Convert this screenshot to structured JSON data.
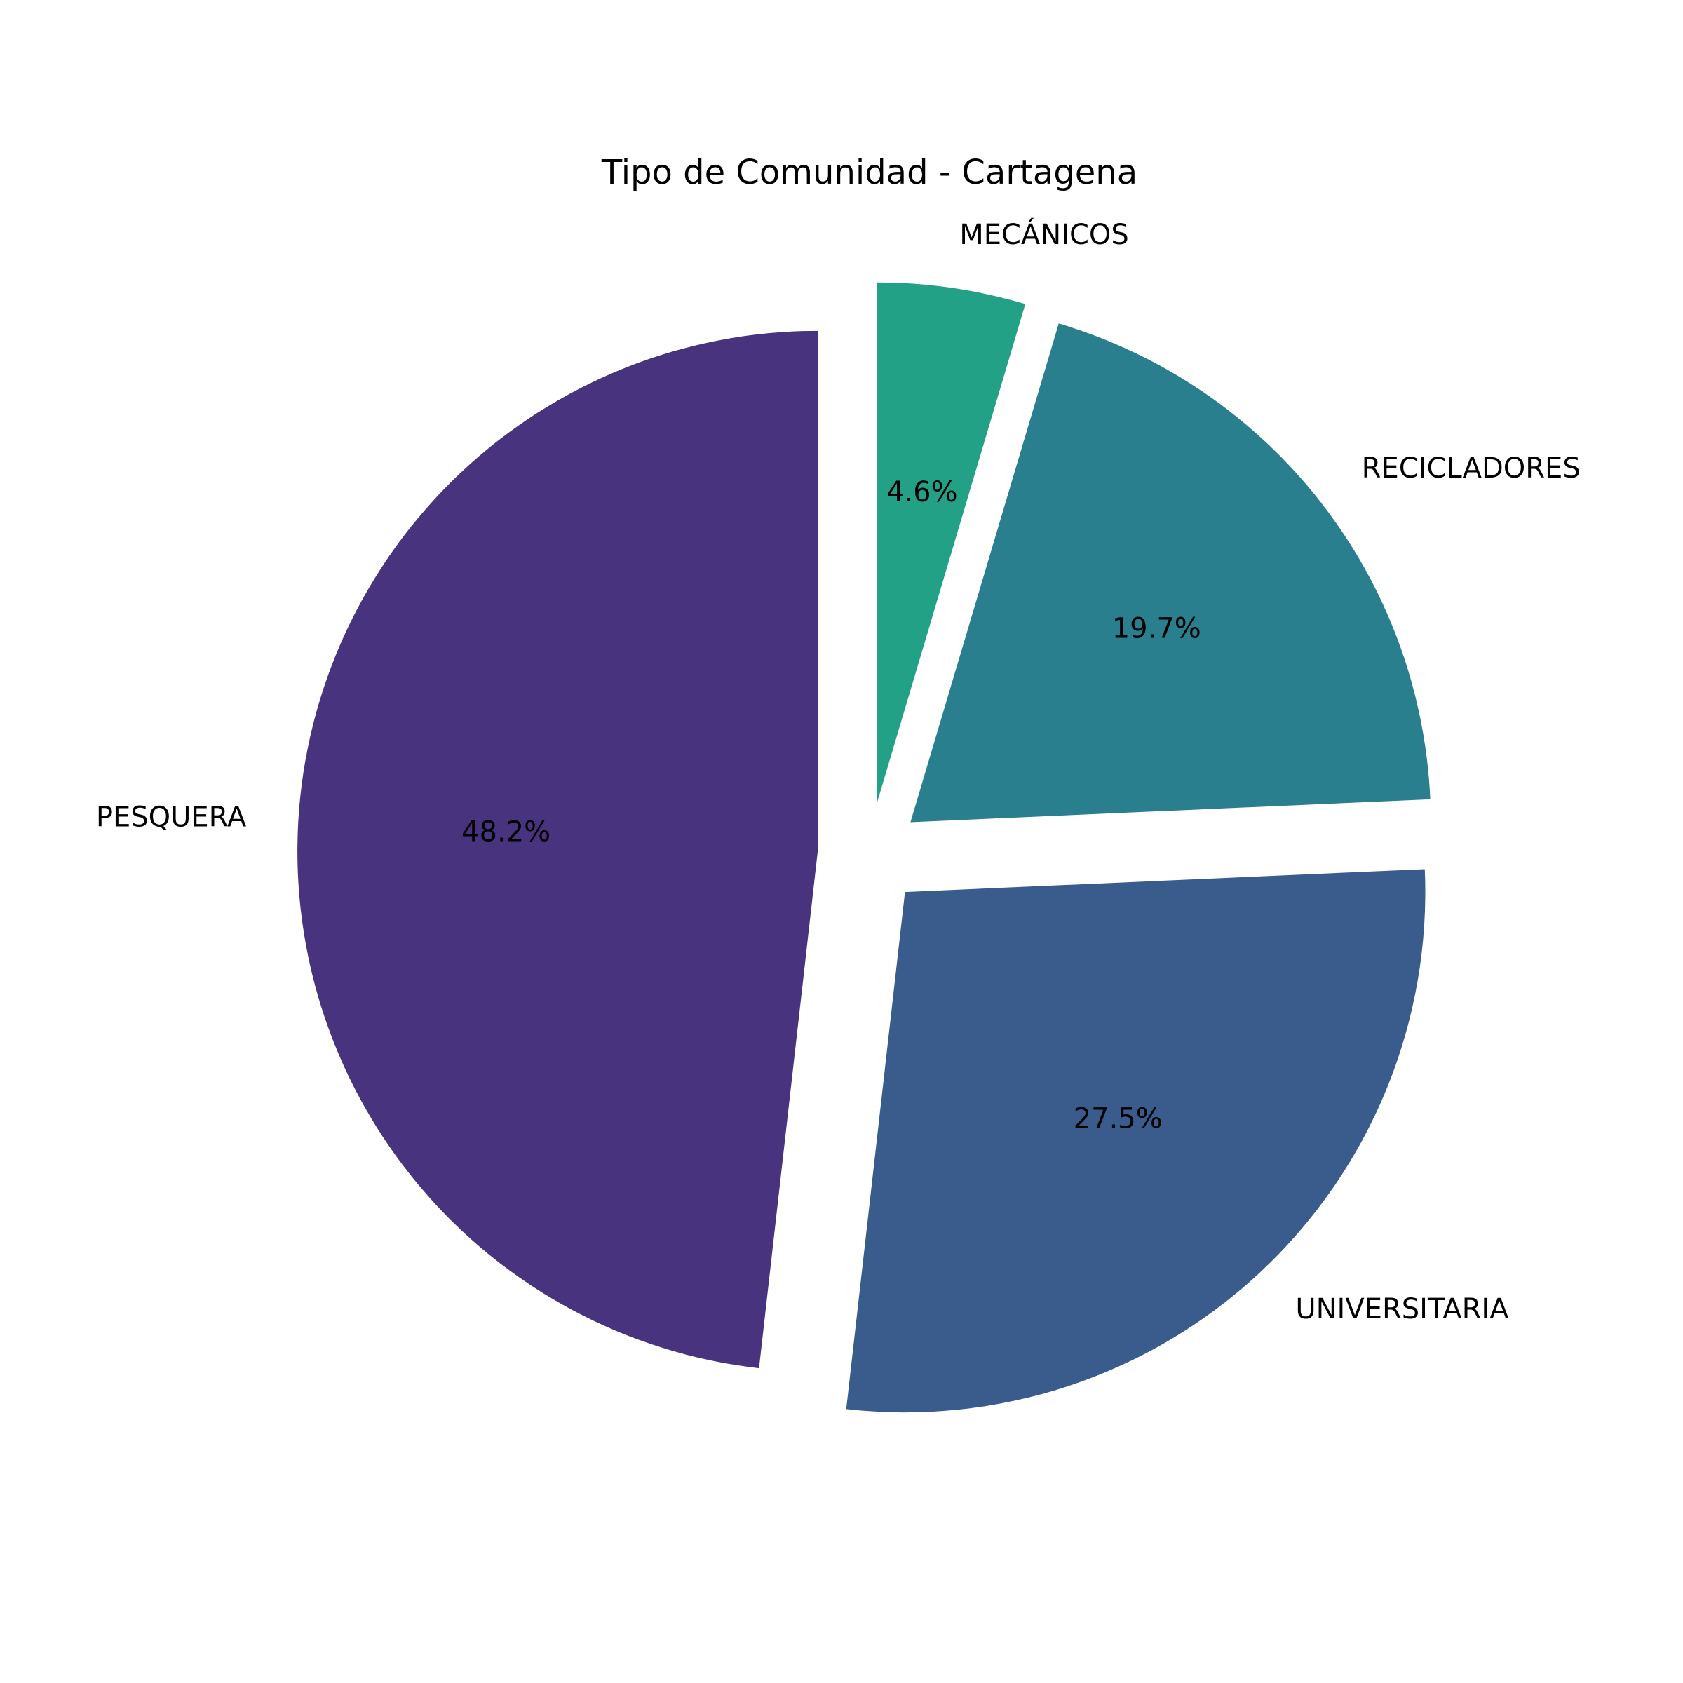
{
  "chart_data": {
    "type": "pie",
    "title": "Tipo de Comunidad - Cartagena",
    "start_angle_deg": 90,
    "direction": "clockwise",
    "exploded": true,
    "slices": [
      {
        "label": "MECÁNICOS",
        "value": 4.6,
        "pct_label": "4.6%",
        "color": "#22a187"
      },
      {
        "label": "RECICLADORES",
        "value": 19.7,
        "pct_label": "19.7%",
        "color": "#297f8e"
      },
      {
        "label": "UNIVERSITARIA",
        "value": 27.5,
        "pct_label": "27.5%",
        "color": "#3a5c8d"
      },
      {
        "label": "PESQUERA",
        "value": 48.2,
        "pct_label": "48.2%",
        "color": "#48337e"
      }
    ]
  }
}
